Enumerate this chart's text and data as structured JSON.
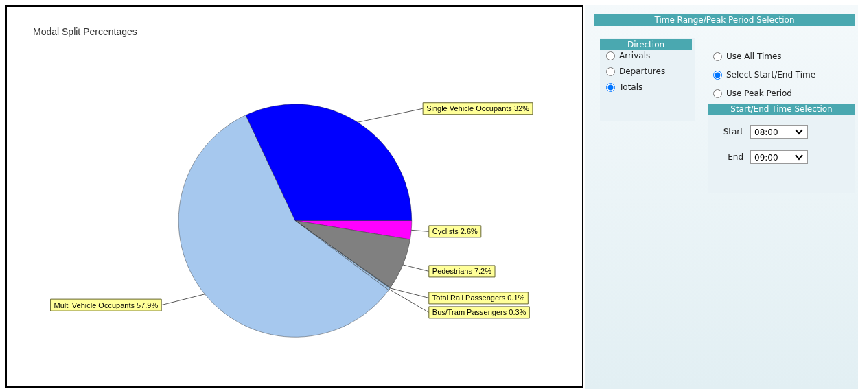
{
  "chart_data": [
    {
      "type": "pie",
      "title": "Modal Split Percentages",
      "categories": [
        "Cyclists",
        "Pedestrians",
        "Total Rail Passengers",
        "Bus/Tram Passengers",
        "Multi Vehicle Occupants",
        "Single Vehicle Occupants"
      ],
      "values": [
        2.6,
        7.2,
        0.1,
        0.3,
        57.9,
        32
      ],
      "colors": [
        "#ff00ff",
        "#808080",
        "#5a7890",
        "#9fc0e0",
        "#a6c8ee",
        "#0000ff"
      ],
      "value_labels": [
        "2.6%",
        "7.2%",
        "0.1%",
        "0.3%",
        "57.9%",
        "32%"
      ],
      "legend": false
    },
    {
      "type": "other",
      "title": "Time Range/Peak Period Selection",
      "annotations": [
        "Direction",
        "Arrivals",
        "Departures",
        "Totals",
        "Use All Times",
        "Select Start/End Time",
        "Use Peak Period",
        "Start/End Time Selection",
        "Start",
        "08:00",
        "End",
        "09:00"
      ]
    }
  ]
}
